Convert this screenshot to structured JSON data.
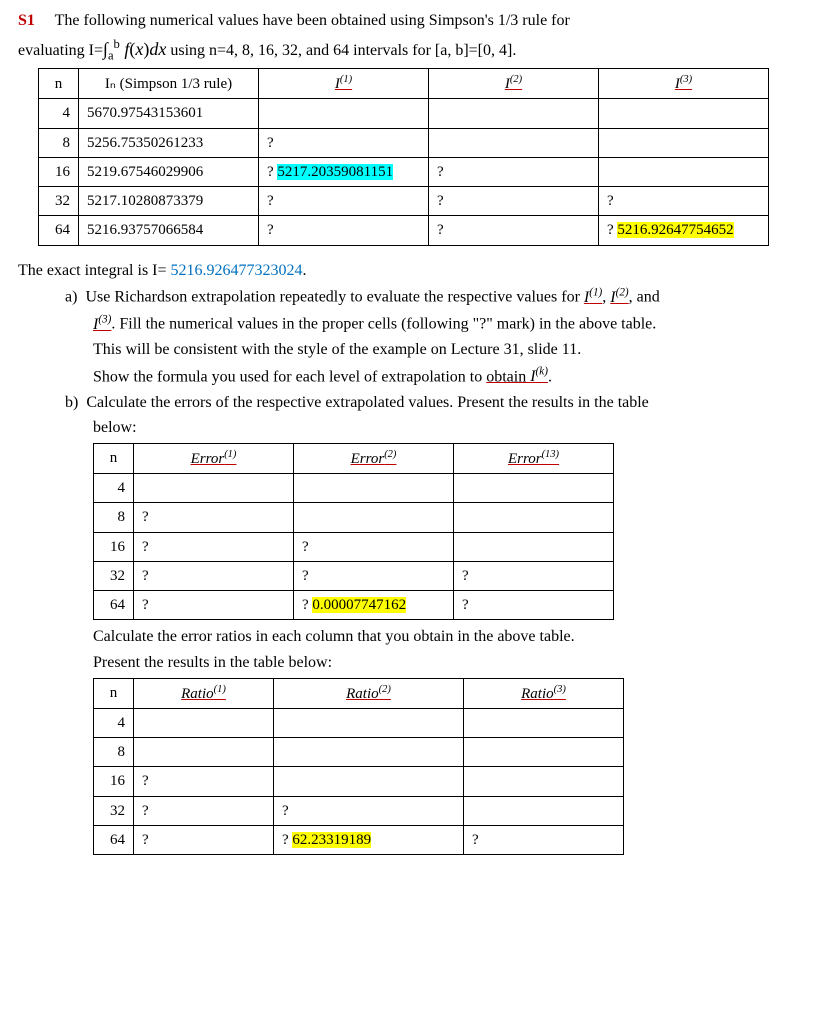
{
  "header": {
    "s1": "S1",
    "intro1": "The following numerical values have been obtained using Simpson's 1/3 rule for",
    "intro2a": "evaluating I=",
    "intro2b": " using n=4, 8, 16, 32, and 64 intervals for [a, b]=[0, 4].",
    "integral_html": "∫<sub>a</sub><sup>b</sup> <i>f</i>(<i>x</i>)<i>dx</i>"
  },
  "table1": {
    "cols": {
      "n": "n",
      "In": "Iₙ (Simpson 1/3 rule)",
      "I1": "I<sup>(1)</sup>",
      "I2": "I<sup>(2)</sup>",
      "I3": "I<sup>(3)</sup>"
    },
    "widths": {
      "n": 40,
      "In": 180,
      "I1": 170,
      "I2": 170,
      "I3": 170
    },
    "rows": [
      {
        "n": "4",
        "In": "5670.97543153601",
        "I1": "",
        "I2": "",
        "I3": ""
      },
      {
        "n": "8",
        "In": "5256.75350261233",
        "I1": "?",
        "I2": "",
        "I3": ""
      },
      {
        "n": "16",
        "In": "5219.67546029906",
        "I1": "? 5217.20359081151",
        "I1_hl": true,
        "I2": "?",
        "I3": ""
      },
      {
        "n": "32",
        "In": "5217.10280873379",
        "I1": "?",
        "I2": "?",
        "I3": "?"
      },
      {
        "n": "64",
        "In": "5216.93757066584",
        "I1": "?",
        "I2": "?",
        "I3": "? 5216.92647754652",
        "I3_hl": true
      }
    ]
  },
  "mid": {
    "exact_pre": "The exact integral is I=  ",
    "exact_val": "5216.926477323024",
    "exact_post": ".",
    "a1": "Use Richardson extrapolation repeatedly to evaluate the respective values for ",
    "a1_I1": "I<sup>(1)</sup>",
    "a1_mid": ", ",
    "a1_I2": "I<sup>(2)</sup>",
    "a1_post": ", and",
    "a2_I3": "I<sup>(3)</sup>",
    "a2": ".  Fill the numerical values in the proper cells (following \"?\" mark) in the above table.",
    "a3": "This will be consistent with the style of the example on Lecture 31, slide 11.",
    "a4_pre": "Show the formula you used for each level of extrapolation to ",
    "a4_link": "obtain ",
    "a4_Ik": "I<sup>(k)</sup>",
    "a4_post": ".",
    "b1": "Calculate the errors of the respective extrapolated values. Present the results in the table",
    "b2": "below:"
  },
  "table2": {
    "cols": {
      "n": "n",
      "e1": "Error<sup>(1)</sup>",
      "e2": "Error<sup>(2)</sup>",
      "e3": "Error<sup>(13)</sup>"
    },
    "widths": {
      "n": 40,
      "e1": 160,
      "e2": 160,
      "e3": 160
    },
    "rows": [
      {
        "n": "4",
        "e1": "",
        "e2": "",
        "e3": ""
      },
      {
        "n": "8",
        "e1": "?",
        "e2": "",
        "e3": ""
      },
      {
        "n": "16",
        "e1": "?",
        "e2": "?",
        "e3": ""
      },
      {
        "n": "32",
        "e1": "?",
        "e2": "?",
        "e3": "?"
      },
      {
        "n": "64",
        "e1": "?",
        "e2": "? 0.00007747162",
        "e2_hl": true,
        "e3": "?"
      }
    ]
  },
  "mid2": {
    "l1": "Calculate the error ratios in each column that you obtain in the above table.",
    "l2": "Present the results in the table below:"
  },
  "table3": {
    "cols": {
      "n": "n",
      "r1": "Ratio<sup>(1)</sup>",
      "r2": "Ratio<sup>(2)</sup>",
      "r3": "Ratio<sup>(3)</sup>"
    },
    "widths": {
      "n": 40,
      "r1": 140,
      "r2": 190,
      "r3": 160
    },
    "rows": [
      {
        "n": "4",
        "r1": "",
        "r2": "",
        "r3": ""
      },
      {
        "n": "8",
        "r1": "",
        "r2": "",
        "r3": ""
      },
      {
        "n": "16",
        "r1": "?",
        "r2": "",
        "r3": ""
      },
      {
        "n": "32",
        "r1": "?",
        "r2": "?",
        "r3": ""
      },
      {
        "n": "64",
        "r1": "?",
        "r2": "? 62.23319189",
        "r2_hl": true,
        "r3": "?"
      }
    ]
  },
  "labels": {
    "a": "a)",
    "b": "b)"
  }
}
